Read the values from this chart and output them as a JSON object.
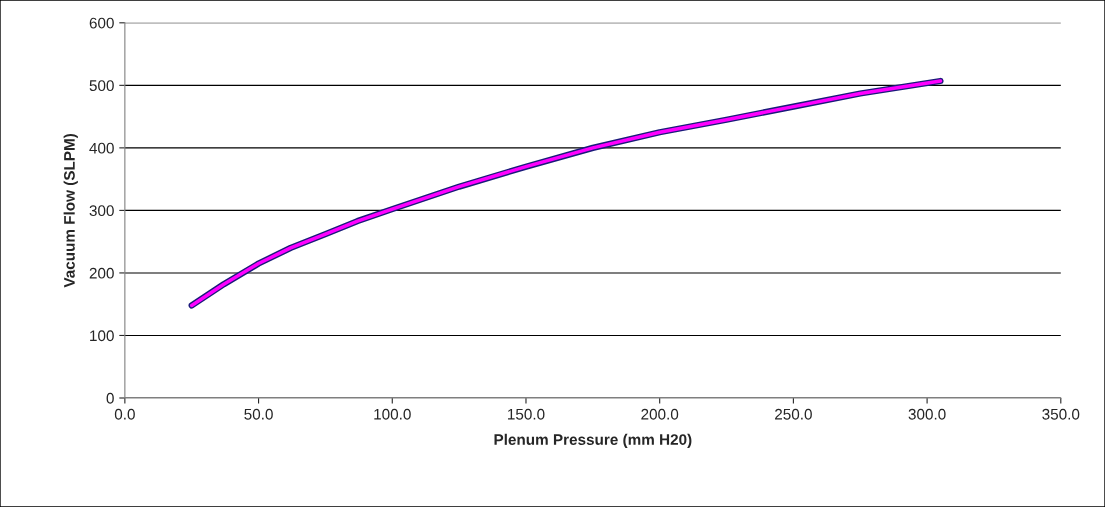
{
  "chart_data": {
    "type": "line",
    "xlabel": "Plenum Pressure (mm H20)",
    "ylabel": "Vacuum Flow (SLPM)",
    "x": [
      25,
      37,
      50,
      62,
      75,
      87,
      100,
      125,
      150,
      175,
      200,
      225,
      250,
      275,
      305
    ],
    "series": [
      {
        "color": "#ff00ff",
        "values": [
          148,
          182,
          215,
          240,
          262,
          283,
          302,
          338,
          370,
          400,
          425,
          445,
          466,
          487,
          507
        ]
      }
    ],
    "xlim": [
      0,
      350
    ],
    "xticks": [
      {
        "value": 0,
        "label": "0.0"
      },
      {
        "value": 50,
        "label": "50.0"
      },
      {
        "value": 100,
        "label": "100.0"
      },
      {
        "value": 150,
        "label": "150.0"
      },
      {
        "value": 200,
        "label": "200.0"
      },
      {
        "value": 250,
        "label": "250.0"
      },
      {
        "value": 300,
        "label": "300.0"
      },
      {
        "value": 350,
        "label": "350.0"
      }
    ],
    "ylim": [
      0,
      600
    ],
    "yticks": [
      0,
      100,
      200,
      300,
      400,
      500,
      600
    ],
    "grid": "y",
    "marker": "none",
    "line_style": "solid"
  }
}
